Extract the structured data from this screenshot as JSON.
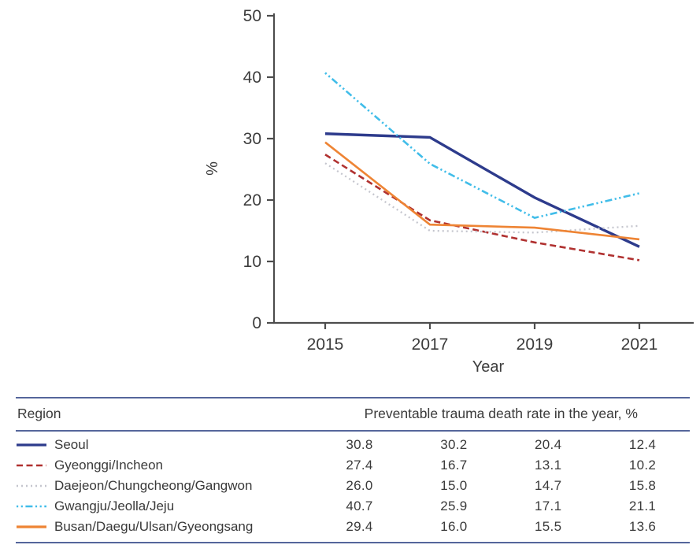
{
  "chart_data": {
    "type": "line",
    "title": "",
    "xlabel": "Year",
    "ylabel": "%",
    "x": [
      2015,
      2017,
      2019,
      2021
    ],
    "x_tick_labels": [
      "2015",
      "2017",
      "2019",
      "2021"
    ],
    "y_ticks": [
      0,
      10,
      20,
      30,
      40,
      50
    ],
    "ylim": [
      0,
      50
    ],
    "grid": false,
    "legend_position": "table-below-chart",
    "axis_color": "#4d4d4d",
    "text_color": "#3c3c3c",
    "series": [
      {
        "name": "Seoul",
        "values": [
          30.8,
          30.2,
          20.4,
          12.4
        ],
        "labels": [
          "30.8",
          "30.2",
          "20.4",
          "12.4"
        ],
        "color": "#2d3b8c",
        "style": "solid",
        "width": 3.4
      },
      {
        "name": "Gyeonggi/Incheon",
        "values": [
          27.4,
          16.7,
          13.1,
          10.2
        ],
        "labels": [
          "27.4",
          "16.7",
          "13.1",
          "10.2"
        ],
        "color": "#b03130",
        "style": "dashed",
        "width": 2.6
      },
      {
        "name": "Daejeon/Chungcheong/Gangwon",
        "values": [
          26.0,
          15.0,
          14.7,
          15.8
        ],
        "labels": [
          "26.0",
          "15.0",
          "14.7",
          "15.8"
        ],
        "color": "#c5c6ce",
        "style": "dotted",
        "width": 2.3
      },
      {
        "name": "Gwangju/Jeolla/Jeju",
        "values": [
          40.7,
          25.9,
          17.1,
          21.1
        ],
        "labels": [
          "40.7",
          "25.9",
          "17.1",
          "21.1"
        ],
        "color": "#41bde9",
        "style": "dashdotdot",
        "width": 2.6
      },
      {
        "name": "Busan/Daegu/Ulsan/Gyeongsang",
        "values": [
          29.4,
          16.0,
          15.5,
          13.6
        ],
        "labels": [
          "29.4",
          "16.0",
          "15.5",
          "13.6"
        ],
        "color": "#ee8434",
        "style": "solid",
        "width": 2.6
      }
    ]
  },
  "table": {
    "region_header": "Region",
    "value_header": "Preventable trauma death rate in the year, %",
    "rule_color": "#55669b"
  }
}
